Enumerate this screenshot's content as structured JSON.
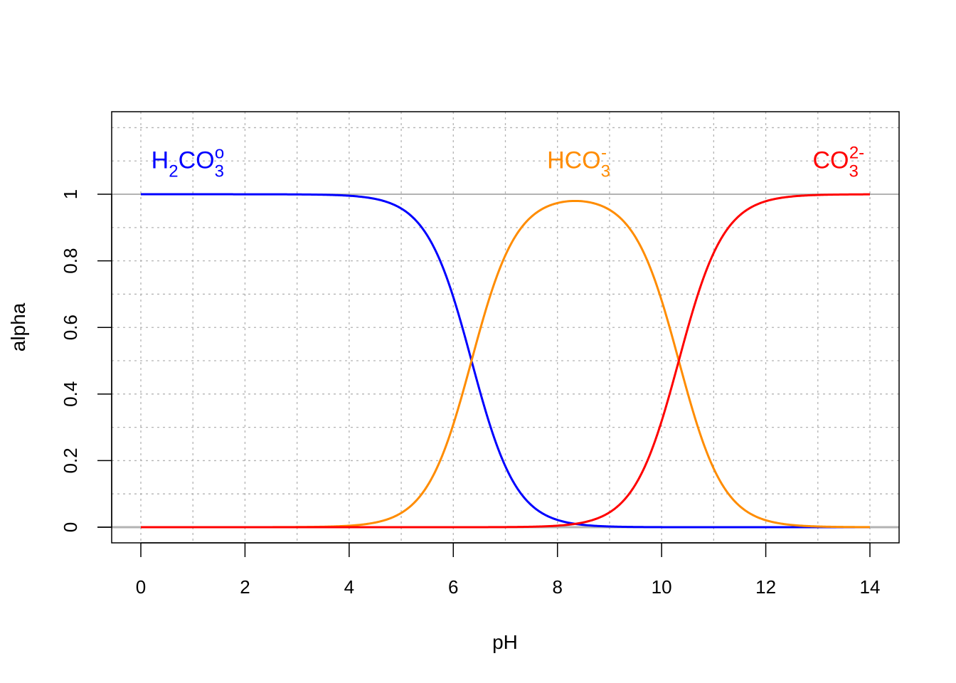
{
  "chart_data": {
    "type": "line",
    "title": "",
    "xlabel": "pH",
    "ylabel": "alpha",
    "xlim": [
      -0.56,
      14.56
    ],
    "ylim": [
      -0.047,
      1.248
    ],
    "xticks": [
      0,
      2,
      4,
      6,
      8,
      10,
      12,
      14
    ],
    "xtick_labels": [
      "0",
      "2",
      "4",
      "6",
      "8",
      "10",
      "12",
      "14"
    ],
    "yticks": [
      0,
      0.2,
      0.4,
      0.6,
      0.8,
      1
    ],
    "ytick_labels": [
      "0",
      "0.2",
      "0.4",
      "0.6",
      "0.8",
      "1"
    ],
    "grid": true,
    "grid_style": "dotted gray, every 1 pH unit and every 0.1 alpha; solid gray at alpha 0 and 1",
    "pKa1": 6.35,
    "pKa2": 10.33,
    "x": [
      0,
      1,
      2,
      3,
      4,
      5,
      6,
      7,
      8,
      9,
      10,
      11,
      12,
      13,
      14
    ],
    "series": [
      {
        "species": "H2CO3",
        "color": "#0000FF",
        "values": [
          1.0,
          1.0,
          1.0,
          1.0,
          0.996,
          0.957,
          0.691,
          0.183,
          0.022,
          0.002,
          0.0,
          0.0,
          0.0,
          0.0,
          0.0
        ]
      },
      {
        "species": "HCO3-",
        "color": "#FF8C00",
        "values": [
          0.0,
          0.0,
          0.0,
          0.0,
          0.004,
          0.043,
          0.309,
          0.817,
          0.974,
          0.953,
          0.681,
          0.176,
          0.021,
          0.002,
          0.0
        ]
      },
      {
        "species": "CO3 2-",
        "color": "#FF0000",
        "values": [
          0.0,
          0.0,
          0.0,
          0.0,
          0.0,
          0.0,
          0.0,
          0.0,
          0.005,
          0.045,
          0.319,
          0.824,
          0.979,
          0.998,
          1.0
        ]
      }
    ],
    "annotations": [
      {
        "parts": [
          {
            "t": "H",
            "k": "n"
          },
          {
            "t": "2",
            "k": "sub"
          },
          {
            "t": "CO",
            "k": "n"
          },
          {
            "t": "3",
            "k": "sub"
          },
          {
            "t": "o",
            "k": "sup"
          }
        ],
        "color": "#0000FF",
        "x": 0.2,
        "y": 1.1
      },
      {
        "parts": [
          {
            "t": "HCO",
            "k": "n"
          },
          {
            "t": "3",
            "k": "sub"
          },
          {
            "t": "-",
            "k": "sup"
          }
        ],
        "color": "#FF8C00",
        "x": 7.8,
        "y": 1.1
      },
      {
        "parts": [
          {
            "t": "CO",
            "k": "n"
          },
          {
            "t": "3",
            "k": "sub"
          },
          {
            "t": "2-",
            "k": "sup"
          }
        ],
        "color": "#FF0000",
        "x": 12.9,
        "y": 1.1
      }
    ]
  }
}
